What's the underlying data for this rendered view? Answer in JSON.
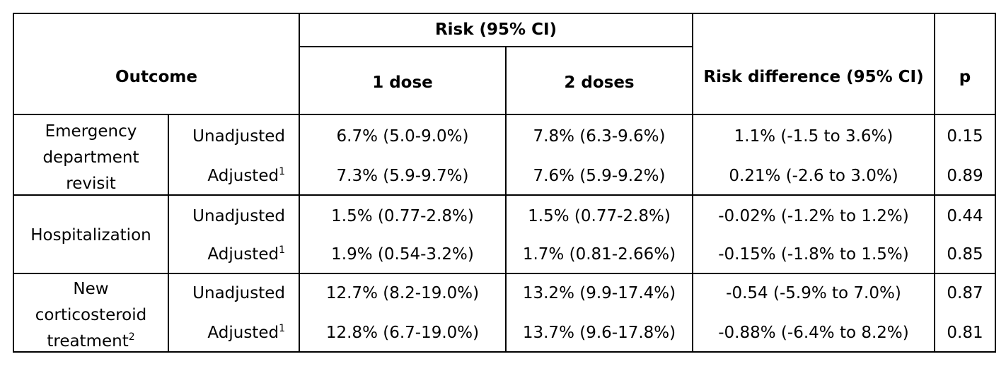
{
  "headers": {
    "outcome": "Outcome",
    "risk_group": "Risk (95% CI)",
    "dose1": "1 dose",
    "dose2": "2 doses",
    "risk_difference": "Risk difference (95% CI)",
    "p": "p"
  },
  "groups": [
    {
      "label_lines": [
        "Emergency",
        "department",
        "revisit"
      ],
      "label_sup": "",
      "rows": [
        {
          "type": "Unadjusted",
          "sup": "",
          "dose1": "6.7% (5.0-9.0%)",
          "dose2": "7.8% (6.3-9.6%)",
          "rd": "1.1% (-1.5 to 3.6%)",
          "p": "0.15"
        },
        {
          "type": "Adjusted",
          "sup": "1",
          "dose1": "7.3% (5.9-9.7%)",
          "dose2": "7.6% (5.9-9.2%)",
          "rd": "0.21% (-2.6 to 3.0%)",
          "p": "0.89"
        }
      ]
    },
    {
      "label_lines": [
        "Hospitalization"
      ],
      "label_sup": "",
      "rows": [
        {
          "type": "Unadjusted",
          "sup": "",
          "dose1": "1.5% (0.77-2.8%)",
          "dose2": "1.5% (0.77-2.8%)",
          "rd": "-0.02% (-1.2% to 1.2%)",
          "p": "0.44"
        },
        {
          "type": "Adjusted",
          "sup": "1",
          "dose1": "1.9% (0.54-3.2%)",
          "dose2": "1.7% (0.81-2.66%)",
          "rd": "-0.15% (-1.8% to 1.5%)",
          "p": "0.85"
        }
      ]
    },
    {
      "label_lines": [
        "New",
        "corticosteroid",
        "treatment"
      ],
      "label_sup": "2",
      "rows": [
        {
          "type": "Unadjusted",
          "sup": "",
          "dose1": "12.7% (8.2-19.0%)",
          "dose2": "13.2% (9.9-17.4%)",
          "rd": "-0.54 (-5.9% to 7.0%)",
          "p": "0.87"
        },
        {
          "type": "Adjusted",
          "sup": "1",
          "dose1": "12.8% (6.7-19.0%)",
          "dose2": "13.7% (9.6-17.8%)",
          "rd": "-0.88% (-6.4% to 8.2%)",
          "p": "0.81"
        }
      ]
    }
  ]
}
